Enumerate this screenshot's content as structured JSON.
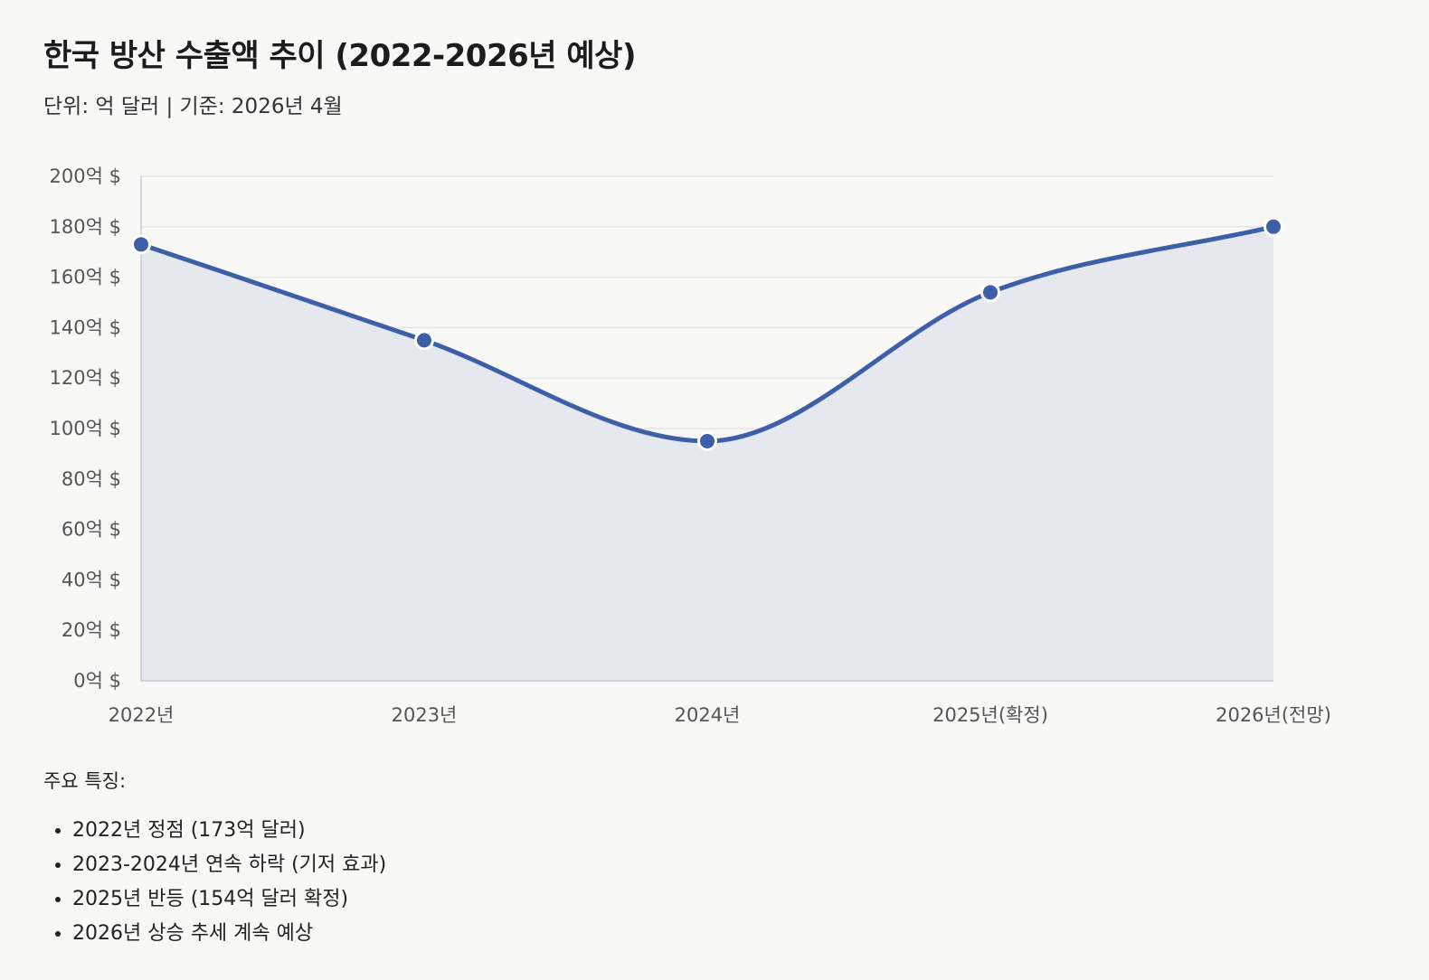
{
  "title": "한국 방산 수출액 추이 (2022-2026년 예상)",
  "subtitle": "단위: 억 달러 | 기준: 2026년 4월",
  "chart_data": {
    "type": "area",
    "categories": [
      "2022년",
      "2023년",
      "2024년",
      "2025년(확정)",
      "2026년(전망)"
    ],
    "series": [
      {
        "values": [
          173,
          135,
          95,
          154,
          180
        ]
      }
    ],
    "ylim": [
      0,
      200
    ],
    "yticks": [
      0,
      20,
      40,
      60,
      80,
      100,
      120,
      140,
      160,
      180,
      200
    ],
    "ytick_suffix": "억 $",
    "grid": true,
    "colors": {
      "line": "#3d5fa8",
      "fill": "#e4e7ee",
      "grid": "#e6e6e6",
      "axis": "#c8cbd3"
    }
  },
  "notes": {
    "heading": "주요 특징:",
    "items": [
      "2022년 정점 (173억 달러)",
      "2023-2024년 연속 하락 (기저 효과)",
      "2025년 반등 (154억 달러 확정)",
      "2026년 상승 추세 계속 예상"
    ]
  }
}
